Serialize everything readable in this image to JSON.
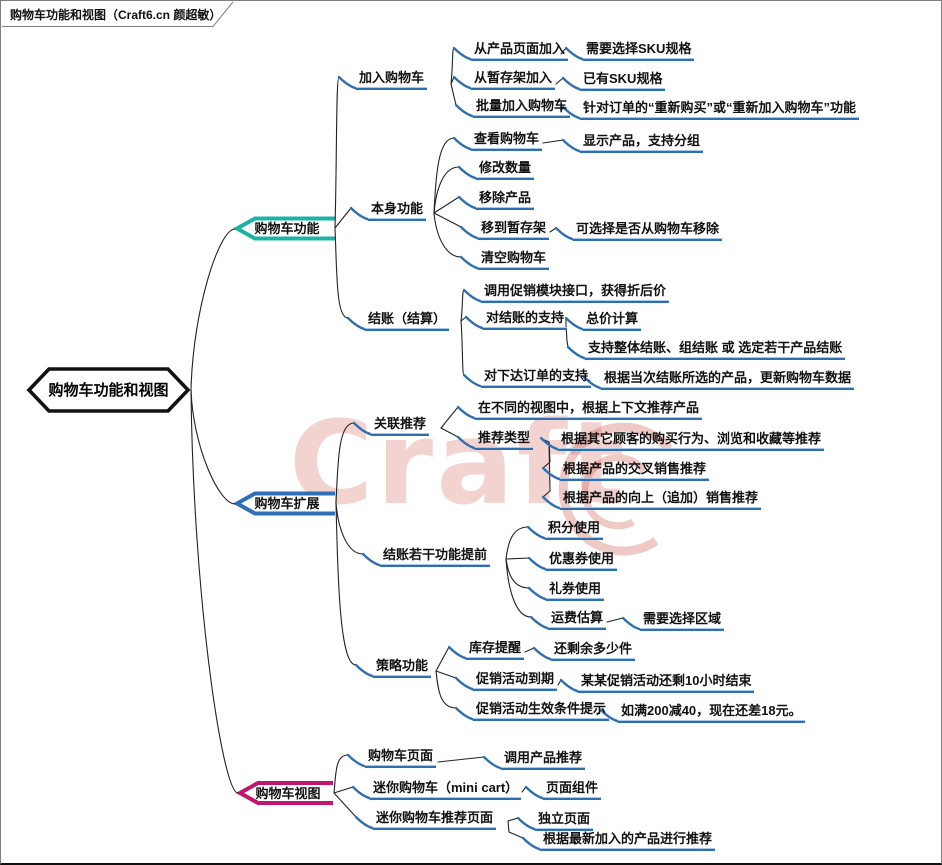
{
  "header": {
    "tab_title": "购物车功能和视图（Craft6.cn 颜超敏）"
  },
  "watermark": {
    "text": "Craft"
  },
  "colors": {
    "topic_underline": "#2E6FB0",
    "topic_underline_halo": "#A7C8E8",
    "connector": "#222222",
    "branch_cart_functions": "#1CB3A4",
    "branch_cart_extensions": "#2E6FB5",
    "branch_cart_views": "#C2156F",
    "root_border": "#111111"
  },
  "root": {
    "label": "购物车功能和视图"
  },
  "branches": [
    {
      "label": "购物车功能",
      "color": "#1CB3A4",
      "children": [
        {
          "label": "加入购物车",
          "children": [
            {
              "label": "从产品页面加入",
              "children": [
                {
                  "label": "需要选择SKU规格"
                }
              ]
            },
            {
              "label": "从暂存架加入",
              "children": [
                {
                  "label": "已有SKU规格"
                }
              ]
            },
            {
              "label": "批量加入购物车",
              "children": [
                {
                  "label": "针对订单的“重新购买”或“重新加入购物车”功能"
                }
              ]
            }
          ]
        },
        {
          "label": "本身功能",
          "children": [
            {
              "label": "查看购物车",
              "children": [
                {
                  "label": "显示产品，支持分组"
                }
              ]
            },
            {
              "label": "修改数量"
            },
            {
              "label": "移除产品"
            },
            {
              "label": "移到暂存架",
              "children": [
                {
                  "label": "可选择是否从购物车移除"
                }
              ]
            },
            {
              "label": "清空购物车"
            }
          ]
        },
        {
          "label": "结账（结算）",
          "children": [
            {
              "label": "调用促销模块接口，获得折后价"
            },
            {
              "label": "对结账的支持",
              "children": [
                {
                  "label": "总价计算"
                },
                {
                  "label": "支持整体结账、组结账 或 选定若干产品结账"
                }
              ]
            },
            {
              "label": "对下达订单的支持",
              "children": [
                {
                  "label": "根据当次结账所选的产品，更新购物车数据"
                }
              ]
            }
          ]
        }
      ]
    },
    {
      "label": "购物车扩展",
      "color": "#2E6FB5",
      "children": [
        {
          "label": "关联推荐",
          "children": [
            {
              "label": "在不同的视图中，根据上下文推荐产品"
            },
            {
              "label": "推荐类型",
              "children": [
                {
                  "label": "根据其它顾客的购买行为、浏览和收藏等推荐"
                },
                {
                  "label": "根据产品的交叉销售推荐"
                },
                {
                  "label": "根据产品的向上（追加）销售推荐"
                }
              ]
            }
          ]
        },
        {
          "label": "结账若干功能提前",
          "children": [
            {
              "label": "积分使用"
            },
            {
              "label": "优惠券使用"
            },
            {
              "label": "礼券使用"
            },
            {
              "label": "运费估算",
              "children": [
                {
                  "label": "需要选择区域"
                }
              ]
            }
          ]
        },
        {
          "label": "策略功能",
          "children": [
            {
              "label": "库存提醒",
              "children": [
                {
                  "label": "还剩余多少件"
                }
              ]
            },
            {
              "label": "促销活动到期",
              "children": [
                {
                  "label": "某某促销活动还剩10小时结束"
                }
              ]
            },
            {
              "label": "促销活动生效条件提示",
              "children": [
                {
                  "label": "如满200减40，现在还差18元。"
                }
              ]
            }
          ]
        }
      ]
    },
    {
      "label": "购物车视图",
      "color": "#C2156F",
      "children": [
        {
          "label": "购物车页面",
          "children": [
            {
              "label": "调用产品推荐"
            }
          ]
        },
        {
          "label": "迷你购物车（mini cart）",
          "children": [
            {
              "label": "页面组件"
            }
          ]
        },
        {
          "label": "迷你购物车推荐页面",
          "children": [
            {
              "label": "独立页面"
            },
            {
              "label": "根据最新加入的产品进行推荐"
            }
          ]
        }
      ]
    }
  ]
}
